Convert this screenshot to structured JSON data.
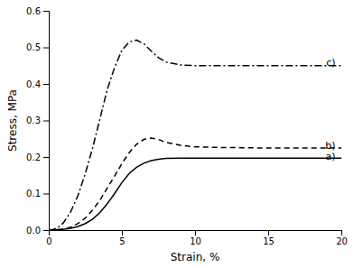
{
  "chart_data": {
    "type": "line",
    "xlabel": "Strain, %",
    "ylabel": "Stress, MPa",
    "xlim": [
      0,
      20
    ],
    "ylim": [
      0,
      0.6
    ],
    "xticks": [
      0,
      5,
      10,
      15,
      20
    ],
    "yticks": [
      {
        "value": 0.0,
        "label": "0.0"
      },
      0.1,
      0.2,
      0.3,
      0.4,
      0.5,
      0.6
    ],
    "series": [
      {
        "color": "#000000",
        "line_style": "solid",
        "x": [
          0,
          0.5,
          1.0,
          1.5,
          2.0,
          2.5,
          3.0,
          3.5,
          4.0,
          4.5,
          5.0,
          5.5,
          6.0,
          6.5,
          7.0,
          7.5,
          8.0,
          9.0,
          10.0,
          12.0,
          14.0,
          16.0,
          18.0,
          20.0
        ],
        "values": [
          0,
          0.001,
          0.002,
          0.005,
          0.01,
          0.018,
          0.03,
          0.048,
          0.072,
          0.1,
          0.13,
          0.155,
          0.172,
          0.183,
          0.19,
          0.194,
          0.196,
          0.197,
          0.197,
          0.197,
          0.197,
          0.197,
          0.197,
          0.197
        ]
      },
      {
        "color": "#000000",
        "line_style": "dashed",
        "x": [
          0,
          0.5,
          1.0,
          1.5,
          2.0,
          2.5,
          3.0,
          3.5,
          4.0,
          4.5,
          5.0,
          5.5,
          6.0,
          6.5,
          7.0,
          7.5,
          8.0,
          9.0,
          10.0,
          12.0,
          14.0,
          16.0,
          18.0,
          20.0
        ],
        "values": [
          0,
          0.001,
          0.003,
          0.008,
          0.018,
          0.033,
          0.055,
          0.082,
          0.115,
          0.148,
          0.182,
          0.212,
          0.235,
          0.248,
          0.252,
          0.248,
          0.24,
          0.232,
          0.228,
          0.226,
          0.225,
          0.225,
          0.225,
          0.225
        ]
      },
      {
        "color": "#000000",
        "line_style": "dashdot",
        "x": [
          0,
          0.3,
          0.5,
          0.8,
          1.0,
          1.5,
          2.0,
          2.5,
          3.0,
          3.5,
          4.0,
          4.5,
          5.0,
          5.5,
          6.0,
          6.5,
          7.0,
          7.5,
          8.0,
          9.0,
          10.0,
          12.0,
          14.0,
          16.0,
          18.0,
          20.0
        ],
        "values": [
          0,
          0.002,
          0.005,
          0.012,
          0.02,
          0.05,
          0.095,
          0.155,
          0.225,
          0.305,
          0.385,
          0.445,
          0.492,
          0.515,
          0.52,
          0.51,
          0.49,
          0.472,
          0.46,
          0.452,
          0.45,
          0.45,
          0.45,
          0.45,
          0.45,
          0.45
        ]
      }
    ],
    "annotations": [
      {
        "text": "a)",
        "x": 19.6,
        "y": 0.2
      },
      {
        "text": "b)",
        "x": 19.6,
        "y": 0.23
      },
      {
        "text": "c)",
        "x": 19.6,
        "y": 0.457
      }
    ]
  }
}
